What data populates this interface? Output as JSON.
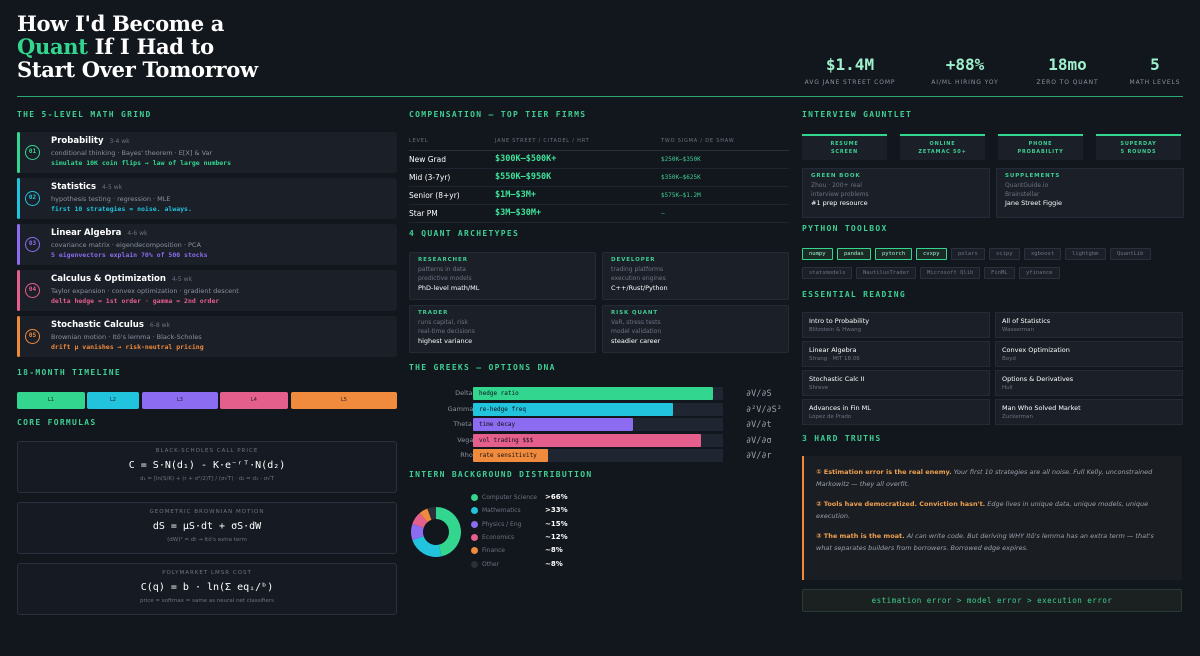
{
  "header": {
    "title_line1": "How I'd Become a",
    "title_highlight": "Quant",
    "title_line2_rest": " If I Had to",
    "title_line3": "Start Over Tomorrow",
    "stats": [
      {
        "value": "$1.4M",
        "label": "AVG JANE STREET COMP"
      },
      {
        "value": "+88%",
        "label": "AI/ML HIRING YOY"
      },
      {
        "value": "18mo",
        "label": "ZERO TO QUANT"
      },
      {
        "value": "5",
        "label": "MATH LEVELS"
      }
    ]
  },
  "math_grind": {
    "title": "THE 5-LEVEL MATH GRIND",
    "levels": [
      {
        "num": "01",
        "name": "Probability",
        "weeks": "3-4 wk",
        "desc": "conditional thinking · Bayes' theorem · E[X] & Var",
        "insight": "simulate 10K coin flips → law of large numbers",
        "color": "#33d68f"
      },
      {
        "num": "02",
        "name": "Statistics",
        "weeks": "4-5 wk",
        "desc": "hypothesis testing · regression · MLE",
        "insight": "first 10 strategies = noise. always.",
        "color": "#22c3dd"
      },
      {
        "num": "03",
        "name": "Linear Algebra",
        "weeks": "4-6 wk",
        "desc": "covariance matrix · eigendecomposition · PCA",
        "insight": "5 eigenvectors explain 70% of 500 stocks",
        "color": "#8c6cf0"
      },
      {
        "num": "04",
        "name": "Calculus & Optimization",
        "weeks": "4-5 wk",
        "desc": "Taylor expansion · convex optimization · gradient descent",
        "insight": "delta hedge = 1st order · gamma = 2nd order",
        "color": "#e45f8c"
      },
      {
        "num": "05",
        "name": "Stochastic Calculus",
        "weeks": "6-8 wk",
        "desc": "Brownian motion · Itô's lemma · Black-Scholes",
        "insight": "drift μ vanishes → risk-neutral pricing",
        "color": "#f08a3c"
      }
    ]
  },
  "timeline": {
    "title": "18-MONTH TIMELINE",
    "segments": [
      {
        "label": "L1",
        "color": "#33d68f"
      },
      {
        "label": "L2",
        "color": "#22c3dd"
      },
      {
        "label": "L3",
        "color": "#8c6cf0"
      },
      {
        "label": "L4",
        "color": "#e45f8c"
      },
      {
        "label": "L5",
        "color": "#f08a3c"
      }
    ]
  },
  "formulas": {
    "title": "CORE FORMULAS",
    "items": [
      {
        "caption": "BLACK-SCHOLES CALL PRICE",
        "equation": "C = S·N(d₁) - K·e⁻ʳᵀ·N(d₂)",
        "note": "d₁ = [ln(S/K) + (r + σ²/2)T] / (σ√T)  ·  d₂ = d₁ - σ√T"
      },
      {
        "caption": "GEOMETRIC BROWNIAN MOTION",
        "equation": "dS = μS·dt + σS·dW",
        "note": "(dW)² = dt → Itô's extra term"
      },
      {
        "caption": "POLYMARKET LMSR COST",
        "equation": "C(q) = b · ln(Σ eqᵢ/ᵇ)",
        "note": "price = softmax = same as neural net classifiers"
      }
    ]
  },
  "compensation": {
    "title": "COMPENSATION — TOP TIER FIRMS",
    "headers": [
      "LEVEL",
      "JANE STREET / CITADEL / HRT",
      "TWO SIGMA / DE SHAW"
    ],
    "rows": [
      [
        "New Grad",
        "$300K–$500K+",
        "$250K–$350K"
      ],
      [
        "Mid (3-7yr)",
        "$550K–$950K",
        "$350K–$625K"
      ],
      [
        "Senior (8+yr)",
        "$1M–$3M+",
        "$575K–$1.2M"
      ],
      [
        "Star PM",
        "$3M–$30M+",
        "–"
      ]
    ]
  },
  "archetypes": {
    "title": "4 QUANT ARCHETYPES",
    "items": [
      {
        "head": "RESEARCHER",
        "desc": "patterns in data\npredictive models",
        "key": "PhD-level math/ML"
      },
      {
        "head": "DEVELOPER",
        "desc": "trading platforms\nexecution engines",
        "key": "C++/Rust/Python"
      },
      {
        "head": "TRADER",
        "desc": "runs capital, risk\nreal-time decisions",
        "key": "highest variance"
      },
      {
        "head": "RISK QUANT",
        "desc": "VaR, stress tests\nmodel validation",
        "key": "steadier career"
      }
    ]
  },
  "greeks": {
    "title": "THE GREEKS — OPTIONS DNA",
    "items": [
      {
        "name": "Delta Δ",
        "label": "hedge ratio",
        "value": 0.96,
        "formula": "∂V/∂S",
        "color": "#33d68f"
      },
      {
        "name": "Gamma Γ",
        "label": "re-hedge freq",
        "value": 0.8,
        "formula": "∂²V/∂S²",
        "color": "#22c3dd"
      },
      {
        "name": "Theta Θ",
        "label": "time decay",
        "value": 0.64,
        "formula": "∂V/∂t",
        "color": "#8c6cf0"
      },
      {
        "name": "Vega ν",
        "label": "vol trading $$$",
        "value": 0.91,
        "formula": "∂V/∂σ",
        "color": "#e45f8c"
      },
      {
        "name": "Rho ρ",
        "label": "rate sensitivity",
        "value": 0.3,
        "formula": "∂V/∂r",
        "color": "#f08a3c"
      }
    ]
  },
  "chart_data": {
    "type": "pie",
    "title": "INTERN BACKGROUND DISTRIBUTION",
    "categories": [
      "Computer Science",
      "Mathematics",
      "Physics / Eng",
      "Economics",
      "Finance",
      "Other"
    ],
    "values": [
      66,
      33,
      15,
      12,
      8,
      8
    ],
    "labels": [
      ">66%",
      ">33%",
      "~15%",
      "~12%",
      "~8%",
      "~8%"
    ],
    "colors": [
      "#33d68f",
      "#22c3dd",
      "#8c6cf0",
      "#e45f8c",
      "#f08a3c",
      "#2a2f38"
    ]
  },
  "interview": {
    "title": "INTERVIEW GAUNTLET",
    "steps": [
      "RESUME\nSCREEN",
      "ONLINE\nZETAMAC 50+",
      "PHONE\nPROBABILITY",
      "SUPERDAY\n5 ROUNDS"
    ],
    "prep": [
      {
        "head": "GREEN BOOK",
        "desc": "Zhou · 200+ real\ninterview problems",
        "key": "#1 prep resource"
      },
      {
        "head": "SUPPLEMENTS",
        "desc": "QuantGuide.io\nBrainstellar",
        "key": "Jane Street Figgie"
      }
    ]
  },
  "toolbox": {
    "title": "PYTHON TOOLBOX",
    "primary": [
      "numpy",
      "pandas",
      "pytorch",
      "cvxpy"
    ],
    "secondary_row1": [
      "polars",
      "scipy",
      "xgboost",
      "lightgbm",
      "QuantLib"
    ],
    "secondary_row2": [
      "statsmodels",
      "NautilusTrader",
      "Microsoft Qlib",
      "FinML",
      "yfinance"
    ]
  },
  "reading": {
    "title": "ESSENTIAL READING",
    "books": [
      {
        "title": "Intro to Probability",
        "author": "Blitzstein & Hwang"
      },
      {
        "title": "All of Statistics",
        "author": "Wasserman"
      },
      {
        "title": "Linear Algebra",
        "author": "Strang · MIT 18.06"
      },
      {
        "title": "Convex Optimization",
        "author": "Boyd"
      },
      {
        "title": "Stochastic Calc II",
        "author": "Shreve"
      },
      {
        "title": "Options & Derivatives",
        "author": "Hull"
      },
      {
        "title": "Advances in Fin ML",
        "author": "López de Prado"
      },
      {
        "title": "Man Who Solved Market",
        "author": "Zuckerman"
      }
    ]
  },
  "truths": {
    "title": "3 HARD TRUTHS",
    "items": [
      {
        "lead": "① Estimation error is the real enemy.",
        "text": " Your first 10 strategies are all noise. Full Kelly, unconstrained Markowitz — they all overfit."
      },
      {
        "lead": "② Tools have democratized. Conviction hasn't.",
        "text": " Edge lives in unique data, unique models, unique execution."
      },
      {
        "lead": "③ The math is the moat.",
        "text": " AI can write code. But deriving WHY Itô's lemma has an extra term — that's what separates builders from borrowers. Borrowed edge expires."
      }
    ],
    "footer": "estimation error > model error > execution error"
  }
}
